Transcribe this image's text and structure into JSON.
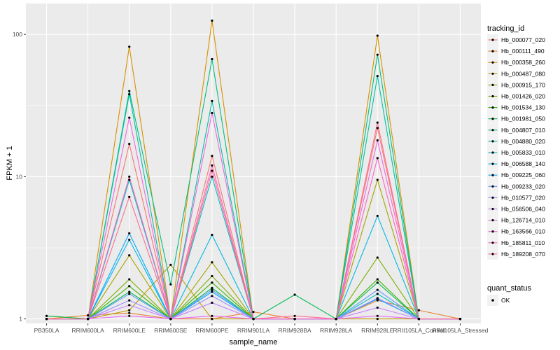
{
  "chart_data": {
    "type": "line",
    "xlabel": "sample_name",
    "ylabel": "FPKM + 1",
    "y_scale": "log10",
    "ylim": [
      0.93,
      165
    ],
    "y_ticks": [
      1,
      10,
      100
    ],
    "y_tick_labels": [
      "1",
      "10",
      "100"
    ],
    "grid": true,
    "legend_position": "right",
    "categories": [
      "PB350LA",
      "RRIM600LA",
      "RRIM600LE",
      "RRIM600SE",
      "RRIM600PE",
      "RRIM901LA",
      "RRIM928BA",
      "RRIM928LA",
      "RRIM928LE",
      "RRII105LA_Control",
      "RRII105LA_Stressed"
    ],
    "series": [
      {
        "name": "Hb_000077_020",
        "color": "#F8766D",
        "values": [
          1.0,
          1.0,
          17.0,
          1.0,
          14.0,
          1.0,
          1.0,
          1.0,
          22.0,
          1.0,
          1.0
        ]
      },
      {
        "name": "Hb_000111_490",
        "color": "#EA8331",
        "values": [
          1.0,
          1.06,
          1.1,
          1.0,
          1.0,
          1.12,
          1.0,
          1.0,
          1.35,
          1.15,
          1.0
        ]
      },
      {
        "name": "Hb_000358_260",
        "color": "#D89000",
        "values": [
          1.05,
          1.0,
          82.0,
          1.0,
          125.0,
          1.0,
          1.0,
          1.0,
          98.0,
          1.0,
          1.0
        ]
      },
      {
        "name": "Hb_000487_080",
        "color": "#C09B00",
        "values": [
          1.0,
          1.0,
          1.15,
          2.4,
          1.0,
          1.0,
          1.0,
          1.0,
          1.0,
          1.0,
          1.0
        ]
      },
      {
        "name": "Hb_000915_170",
        "color": "#A3A500",
        "values": [
          1.0,
          1.0,
          2.8,
          1.0,
          2.5,
          1.0,
          1.0,
          1.0,
          9.5,
          1.0,
          1.0
        ]
      },
      {
        "name": "Hb_001426_020",
        "color": "#7CAE00",
        "values": [
          1.0,
          1.0,
          1.9,
          1.0,
          2.0,
          1.0,
          1.0,
          1.0,
          2.7,
          1.0,
          1.0
        ]
      },
      {
        "name": "Hb_001534_130",
        "color": "#39B600",
        "values": [
          1.0,
          1.0,
          1.7,
          1.0,
          1.8,
          1.0,
          1.0,
          1.0,
          1.9,
          1.0,
          1.0
        ]
      },
      {
        "name": "Hb_001981_050",
        "color": "#00BB4E",
        "values": [
          1.05,
          1.0,
          1.55,
          1.0,
          1.65,
          1.0,
          1.48,
          1.0,
          1.8,
          1.0,
          1.0
        ]
      },
      {
        "name": "Hb_004807_010",
        "color": "#00BF7D",
        "values": [
          1.0,
          1.0,
          40.0,
          1.75,
          67.0,
          1.0,
          1.0,
          1.0,
          72.0,
          1.0,
          1.0
        ]
      },
      {
        "name": "Hb_004880_020",
        "color": "#00C1A3",
        "values": [
          1.0,
          1.0,
          38.0,
          1.0,
          34.0,
          1.0,
          1.0,
          1.0,
          51.0,
          1.0,
          1.0
        ]
      },
      {
        "name": "Hb_005833_010",
        "color": "#00BFC4",
        "values": [
          1.0,
          1.0,
          9.5,
          1.0,
          10.0,
          1.0,
          1.0,
          1.0,
          1.5,
          1.0,
          1.0
        ]
      },
      {
        "name": "Hb_006588_140",
        "color": "#00B8E5",
        "values": [
          1.0,
          1.0,
          3.6,
          1.0,
          3.9,
          1.0,
          1.0,
          1.0,
          5.3,
          1.0,
          1.0
        ]
      },
      {
        "name": "Hb_009225_060",
        "color": "#00A9FF",
        "values": [
          1.0,
          1.0,
          4.0,
          1.0,
          1.55,
          1.0,
          1.0,
          1.0,
          1.38,
          1.0,
          1.0
        ]
      },
      {
        "name": "Hb_009233_020",
        "color": "#619CFF",
        "values": [
          1.0,
          1.0,
          1.5,
          1.0,
          1.6,
          1.0,
          1.0,
          1.0,
          1.6,
          1.0,
          1.0
        ]
      },
      {
        "name": "Hb_010577_020",
        "color": "#9F8CFF",
        "values": [
          1.0,
          1.0,
          1.35,
          1.0,
          1.45,
          1.0,
          1.0,
          1.0,
          1.4,
          1.0,
          1.0
        ]
      },
      {
        "name": "Hb_056506_040",
        "color": "#C77CFF",
        "values": [
          1.0,
          1.0,
          1.25,
          1.0,
          1.3,
          1.0,
          1.0,
          1.0,
          1.2,
          1.0,
          1.0
        ]
      },
      {
        "name": "Hb_126714_010",
        "color": "#E76BF3",
        "values": [
          1.0,
          1.0,
          1.05,
          1.0,
          1.05,
          1.0,
          1.0,
          1.0,
          1.05,
          1.0,
          1.0
        ]
      },
      {
        "name": "Hb_163566_010",
        "color": "#F564E3",
        "values": [
          1.0,
          1.0,
          26.0,
          1.0,
          28.0,
          1.0,
          1.0,
          1.0,
          18.0,
          1.0,
          1.0
        ]
      },
      {
        "name": "Hb_185811_010",
        "color": "#FF61C3",
        "values": [
          1.0,
          1.0,
          10.0,
          1.0,
          12.0,
          1.0,
          1.0,
          1.0,
          13.5,
          1.0,
          1.0
        ]
      },
      {
        "name": "Hb_189208_070",
        "color": "#FF6C91",
        "values": [
          1.0,
          1.0,
          7.2,
          1.0,
          11.0,
          1.0,
          1.05,
          1.0,
          24.0,
          1.0,
          1.0
        ]
      }
    ],
    "legend_title": "tracking_id",
    "legend2_title": "quant_status",
    "legend2_items": [
      "OK"
    ],
    "colors": {
      "panel": "#EBEBEB",
      "grid": "#FFFFFF",
      "point": "#000000"
    }
  }
}
